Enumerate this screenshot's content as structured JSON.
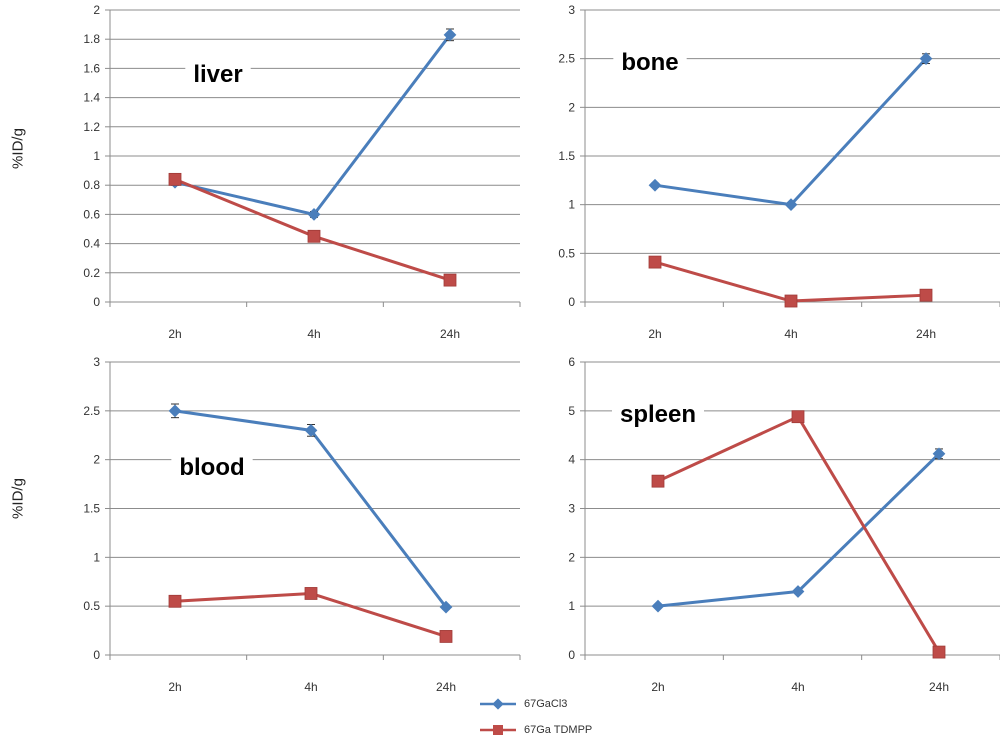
{
  "y_axis_label": "%ID/g",
  "legend": {
    "items": [
      {
        "label": "67GaCl3",
        "color": "#4a7ebb",
        "marker": "diamond"
      },
      {
        "label": "67Ga TDMPP",
        "color": "#be4b48",
        "marker": "square"
      }
    ]
  },
  "chart_data": [
    {
      "type": "line",
      "title": "liver",
      "categories": [
        "2h",
        "4h",
        "24h"
      ],
      "ylim": [
        0,
        2
      ],
      "yticks": [
        "0",
        "0.2",
        "0.4",
        "0.6",
        "0.8",
        "1",
        "1.2",
        "1.4",
        "1.6",
        "1.8",
        "2"
      ],
      "grid": true,
      "series": [
        {
          "name": "67GaCl3",
          "values": [
            0.82,
            0.6,
            1.83
          ],
          "errors": [
            0.02,
            0.02,
            0.04
          ]
        },
        {
          "name": "67Ga TDMPP",
          "values": [
            0.84,
            0.45,
            0.15
          ],
          "errors": [
            0,
            0,
            0
          ]
        }
      ]
    },
    {
      "type": "line",
      "title": "bone",
      "categories": [
        "2h",
        "4h",
        "24h"
      ],
      "ylim": [
        0,
        3
      ],
      "yticks": [
        "0",
        "0.5",
        "1",
        "1.5",
        "2",
        "2.5",
        "3"
      ],
      "grid": true,
      "series": [
        {
          "name": "67GaCl3",
          "values": [
            1.2,
            1.0,
            2.5
          ],
          "errors": [
            0.02,
            0.02,
            0.05
          ]
        },
        {
          "name": "67Ga TDMPP",
          "values": [
            0.41,
            0.01,
            0.07
          ],
          "errors": [
            0,
            0,
            0
          ]
        }
      ]
    },
    {
      "type": "line",
      "title": "blood",
      "categories": [
        "2h",
        "4h",
        "24h"
      ],
      "ylim": [
        0,
        3
      ],
      "yticks": [
        "0",
        "0.5",
        "1",
        "1.5",
        "2",
        "2.5",
        "3"
      ],
      "grid": true,
      "series": [
        {
          "name": "67GaCl3",
          "values": [
            2.5,
            2.3,
            0.49
          ],
          "errors": [
            0.07,
            0.06,
            0.02
          ]
        },
        {
          "name": "67Ga TDMPP",
          "values": [
            0.55,
            0.63,
            0.19
          ],
          "errors": [
            0,
            0,
            0
          ]
        }
      ]
    },
    {
      "type": "line",
      "title": "spleen",
      "categories": [
        "2h",
        "4h",
        "24h"
      ],
      "ylim": [
        0,
        6
      ],
      "yticks": [
        "0",
        "1",
        "2",
        "3",
        "4",
        "5",
        "6"
      ],
      "grid": true,
      "series": [
        {
          "name": "67GaCl3",
          "values": [
            1.0,
            1.3,
            4.12
          ],
          "errors": [
            0.03,
            0.04,
            0.1
          ]
        },
        {
          "name": "67Ga TDMPP",
          "values": [
            3.56,
            4.88,
            0.06
          ],
          "errors": [
            0,
            0.08,
            0
          ]
        }
      ]
    }
  ]
}
